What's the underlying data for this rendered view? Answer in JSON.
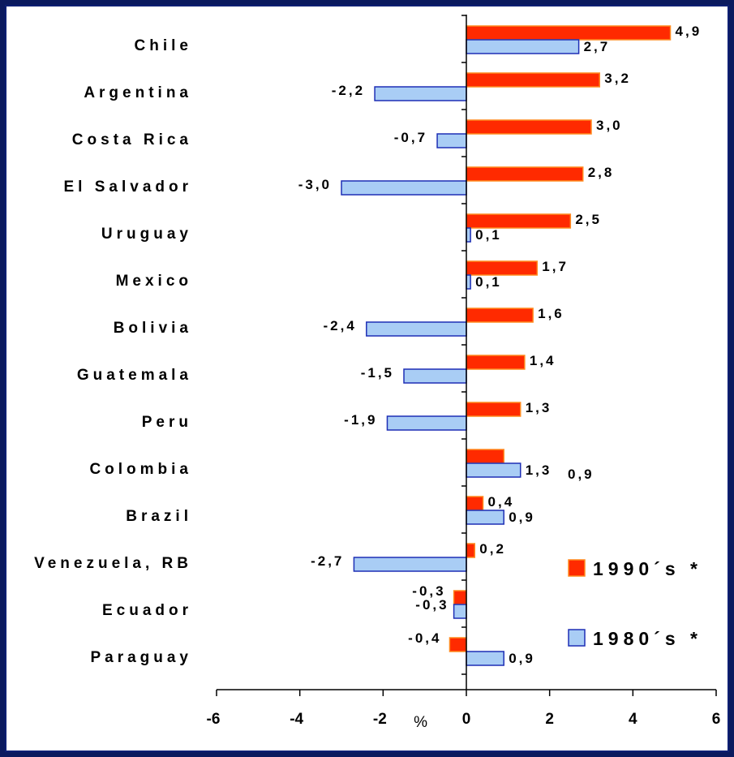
{
  "chart_data": {
    "type": "bar",
    "orientation": "horizontal",
    "categories": [
      "Chile",
      "Argentina",
      "Costa Rica",
      "El Salvador",
      "Uruguay",
      "Mexico",
      "Bolivia",
      "Guatemala",
      "Peru",
      "Colombia",
      "Brazil",
      "Venezuela, RB",
      "Ecuador",
      "Paraguay"
    ],
    "series": [
      {
        "name": "1990´s *",
        "color": "#ff2a00",
        "values": [
          4.9,
          3.2,
          3.0,
          2.8,
          2.5,
          1.7,
          1.6,
          1.4,
          1.3,
          0.9,
          0.4,
          0.2,
          -0.3,
          -0.4
        ],
        "labels": [
          "4,9",
          "3,2",
          "3,0",
          "2,8",
          "2,5",
          "1,7",
          "1,6",
          "1,4",
          "1,3",
          "0,9",
          "0,4",
          "0,2",
          "-0,3",
          "-0,4"
        ]
      },
      {
        "name": "1980´s *",
        "color": "#a9cdf5",
        "values": [
          2.7,
          -2.2,
          -0.7,
          -3.0,
          0.1,
          0.1,
          -2.4,
          -1.5,
          -1.9,
          1.3,
          0.9,
          -2.7,
          -0.3,
          0.9
        ],
        "labels": [
          "2,7",
          "-2,2",
          "-0,7",
          "-3,0",
          "0,1",
          "0,1",
          "-2,4",
          "-1,5",
          "-1,9",
          "1,3",
          "0,9",
          "-2,7",
          "-0,3",
          "0,9"
        ]
      }
    ],
    "xlim": [
      -6,
      6
    ],
    "xticks": [
      -6,
      -4,
      -2,
      0,
      2,
      4,
      6
    ],
    "xtick_labels": [
      "-6",
      "-4",
      "-2",
      "0",
      "2",
      "4",
      "6"
    ],
    "xlabel": "%",
    "title": "",
    "legend_position": "right",
    "grid": false
  }
}
